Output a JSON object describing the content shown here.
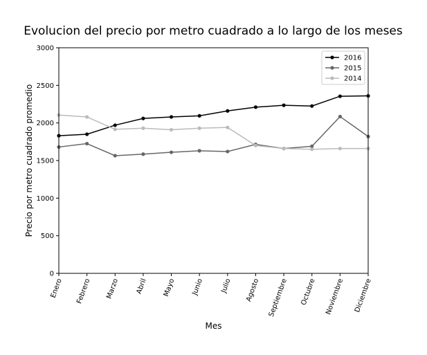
{
  "chart_data": {
    "type": "line",
    "title": "Evolucion del precio por metro cuadrado a lo largo de los meses",
    "xlabel": "Mes",
    "ylabel": "Precio por metro cuadrado promedio",
    "categories": [
      "Enero",
      "Febrero",
      "Marzo",
      "Abril",
      "Mayo",
      "Junio",
      "Julio",
      "Agosto",
      "Septiembre",
      "Octubre",
      "Noviembre",
      "Diciembre"
    ],
    "ylim": [
      0,
      3000
    ],
    "yticks": [
      "0",
      "500",
      "1000",
      "1500",
      "2000",
      "2500",
      "3000"
    ],
    "grid": false,
    "legend_position": "top-right",
    "series": [
      {
        "name": "2016",
        "color": "#000000",
        "values": [
          1830,
          1850,
          1970,
          2060,
          2080,
          2095,
          2160,
          2210,
          2235,
          2225,
          2355,
          2360
        ]
      },
      {
        "name": "2015",
        "color": "#666666",
        "values": [
          1680,
          1725,
          1565,
          1585,
          1610,
          1630,
          1620,
          1715,
          1660,
          1690,
          2085,
          1820
        ]
      },
      {
        "name": "2014",
        "color": "#bbbbbb",
        "values": [
          2105,
          2080,
          1915,
          1930,
          1910,
          1930,
          1940,
          1700,
          1660,
          1650,
          1660,
          1660
        ]
      }
    ]
  }
}
